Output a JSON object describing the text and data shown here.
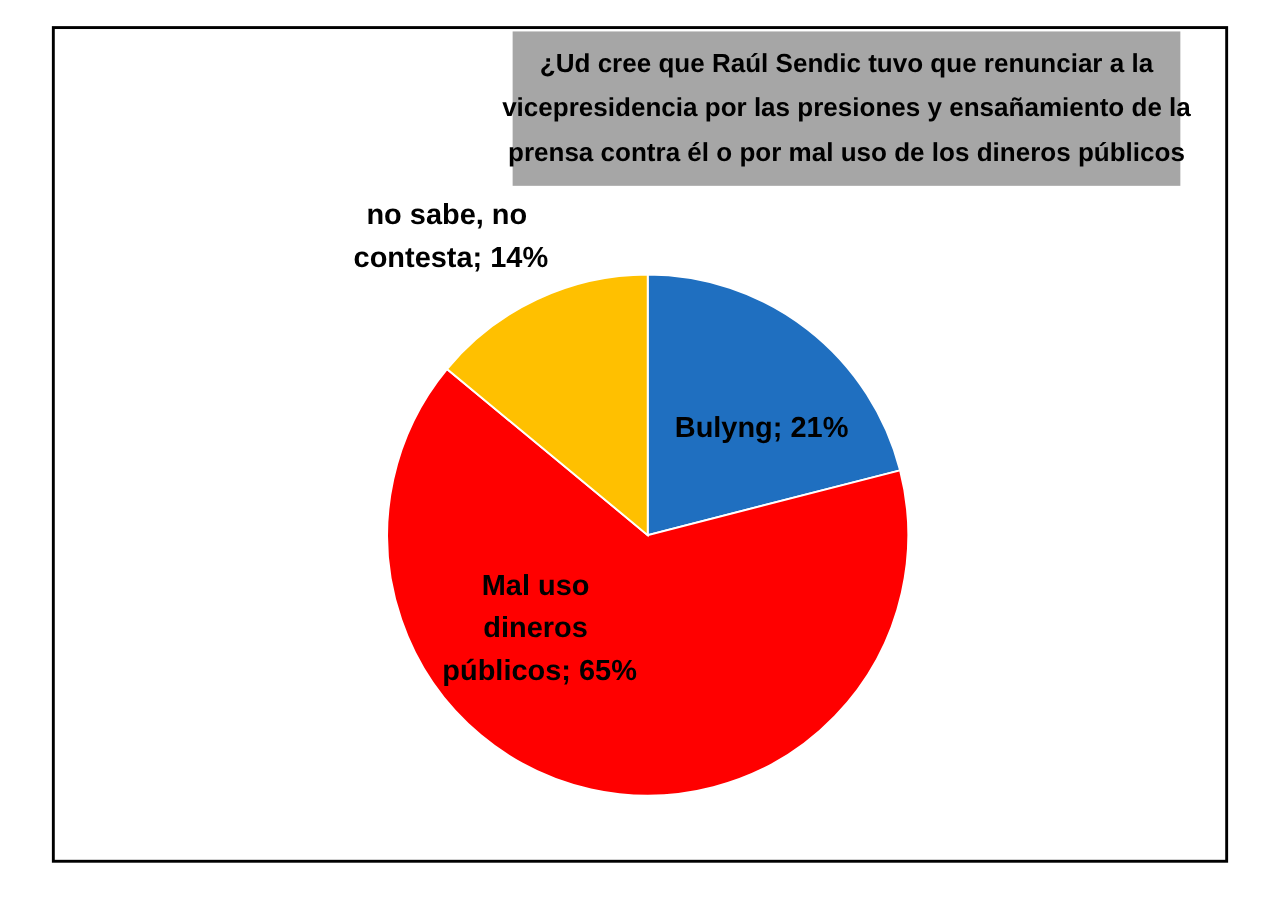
{
  "chart_data": {
    "type": "pie",
    "title": "¿Ud cree que Raúl Sendic tuvo que renunciar a la vicepresidencia por las presiones y ensañamiento de la prensa contra él o por mal uso de los dineros públicos",
    "categories": [
      "Bulyng",
      "Mal uso dineros públicos",
      "no sabe, no contesta"
    ],
    "value_labels": [
      "21%",
      "65%",
      "14%"
    ],
    "values": [
      21,
      65,
      14
    ],
    "colors": [
      "#1f6fc0",
      "#ff0000",
      "#ffc000"
    ]
  }
}
